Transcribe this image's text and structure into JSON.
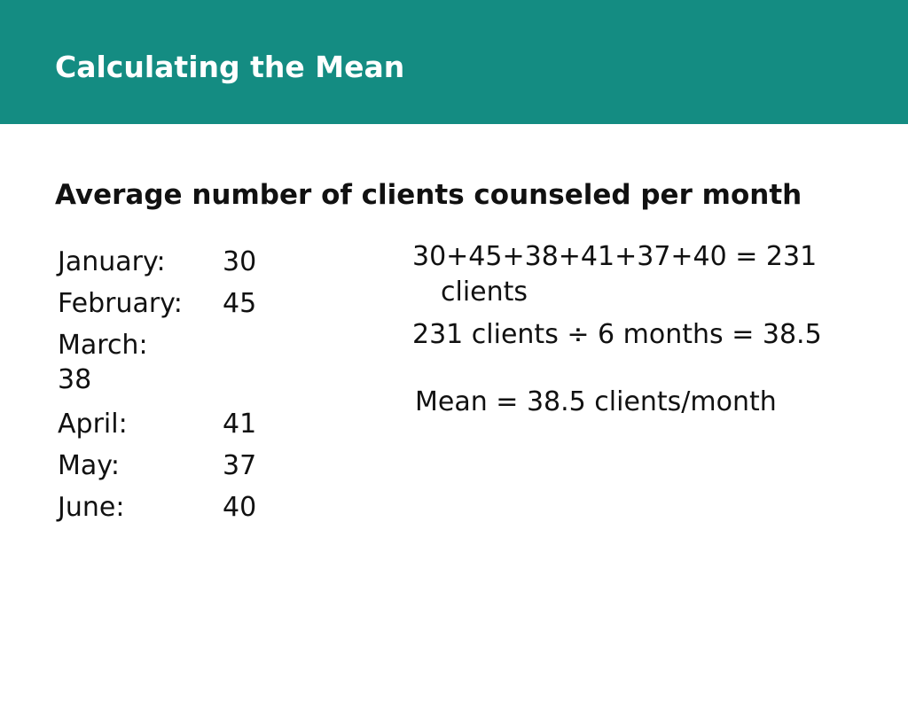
{
  "slide": {
    "title": "Calculating the Mean",
    "subtitle": "Average number of clients counseled per month"
  },
  "months": [
    {
      "label": "January:",
      "value": "30"
    },
    {
      "label": "February:",
      "value": "45"
    },
    {
      "label": "March:",
      "value": "38"
    },
    {
      "label": "April:",
      "value": "41"
    },
    {
      "label": "May:",
      "value": "37"
    },
    {
      "label": "June:",
      "value": "40"
    }
  ],
  "calculation": {
    "sum_line_1": "30+45+38+41+37+40 = 231",
    "sum_line_2": "clients",
    "division": "231 clients ÷ 6 months = 38.5",
    "mean": "Mean = 38.5 clients/month"
  },
  "colors": {
    "header_bg": "#148c82",
    "title_text": "#ffffff",
    "body_text": "#111111"
  }
}
